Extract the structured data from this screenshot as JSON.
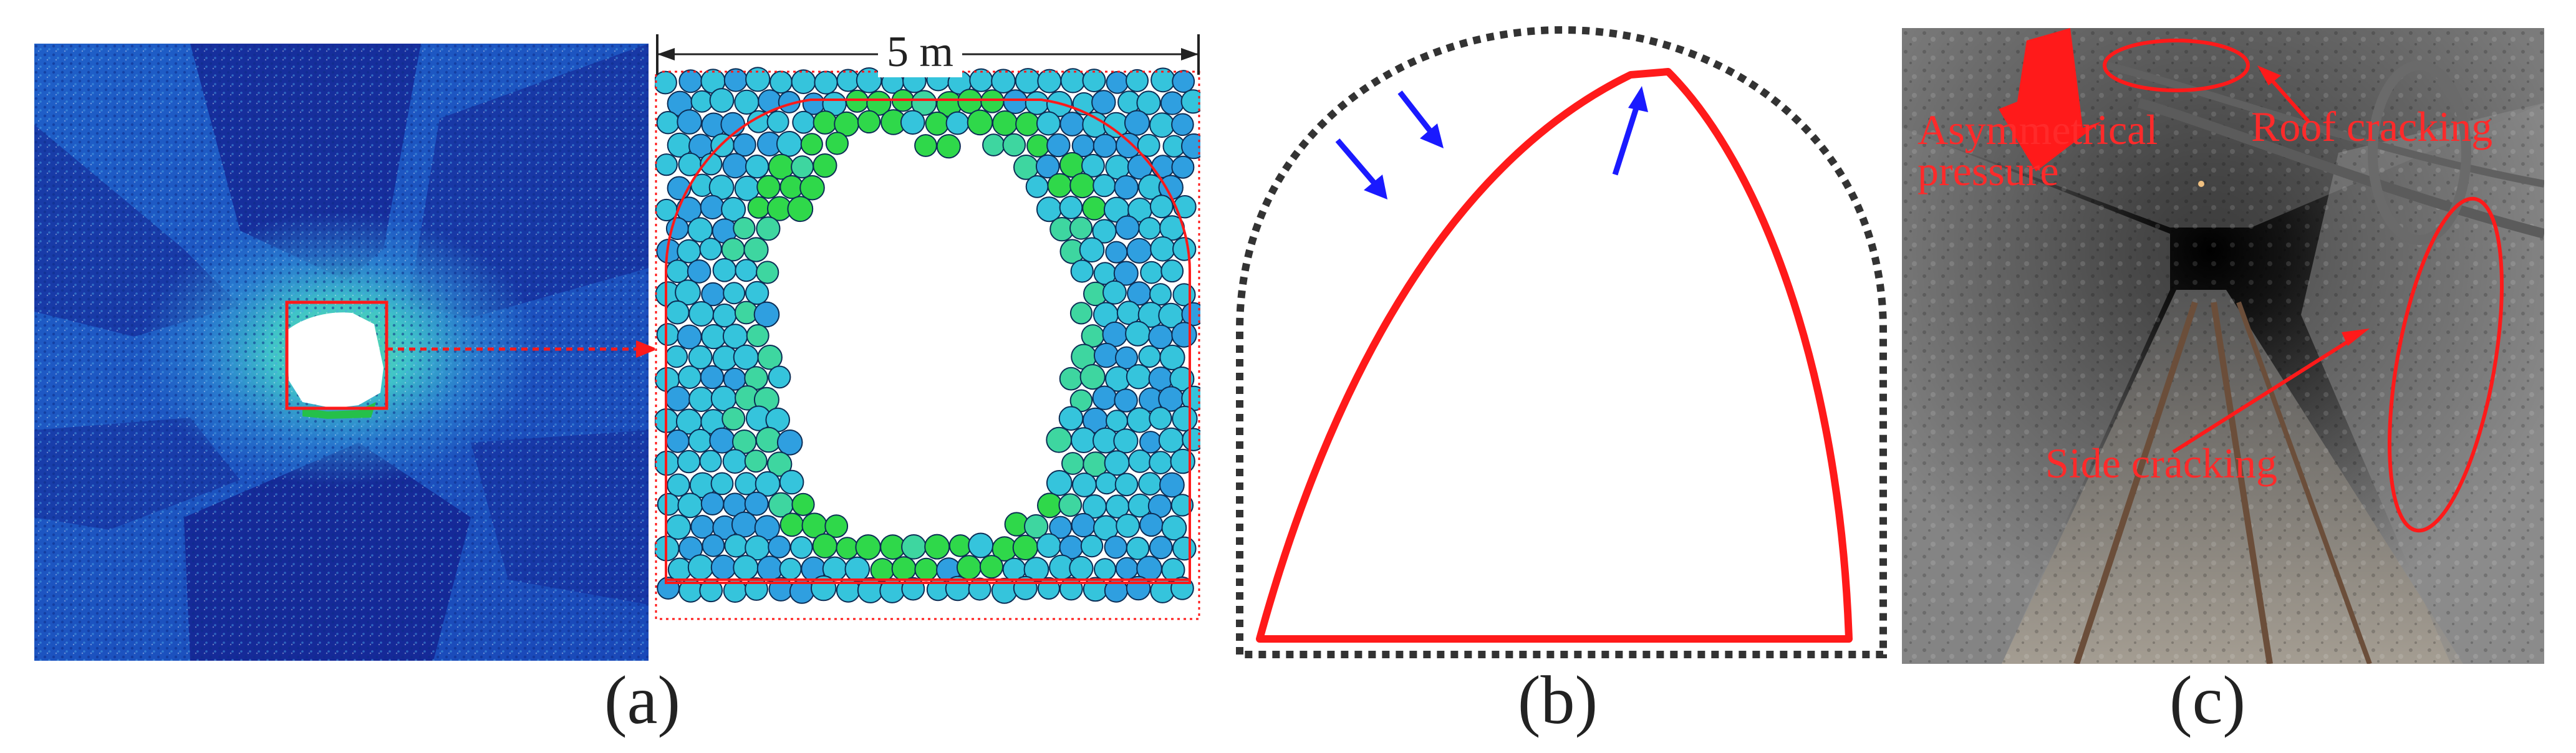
{
  "figure": {
    "captions": {
      "a": "(a)",
      "b": "(b)",
      "c": "(c)"
    },
    "panel_a": {
      "scale_label": "5 m"
    },
    "panel_c": {
      "annotations": {
        "asymmetrical_pressure": "Asymmetrical\npressure",
        "roof_cracking": "Roof cracking",
        "side_cracking": "Side cracking"
      }
    },
    "colors": {
      "outline_red": "#ff1a1a",
      "arrow_blue": "#1a1aff",
      "particle_blue": "#1f49c9",
      "particle_cyan": "#35c4dc",
      "particle_green": "#2fd84a"
    }
  }
}
